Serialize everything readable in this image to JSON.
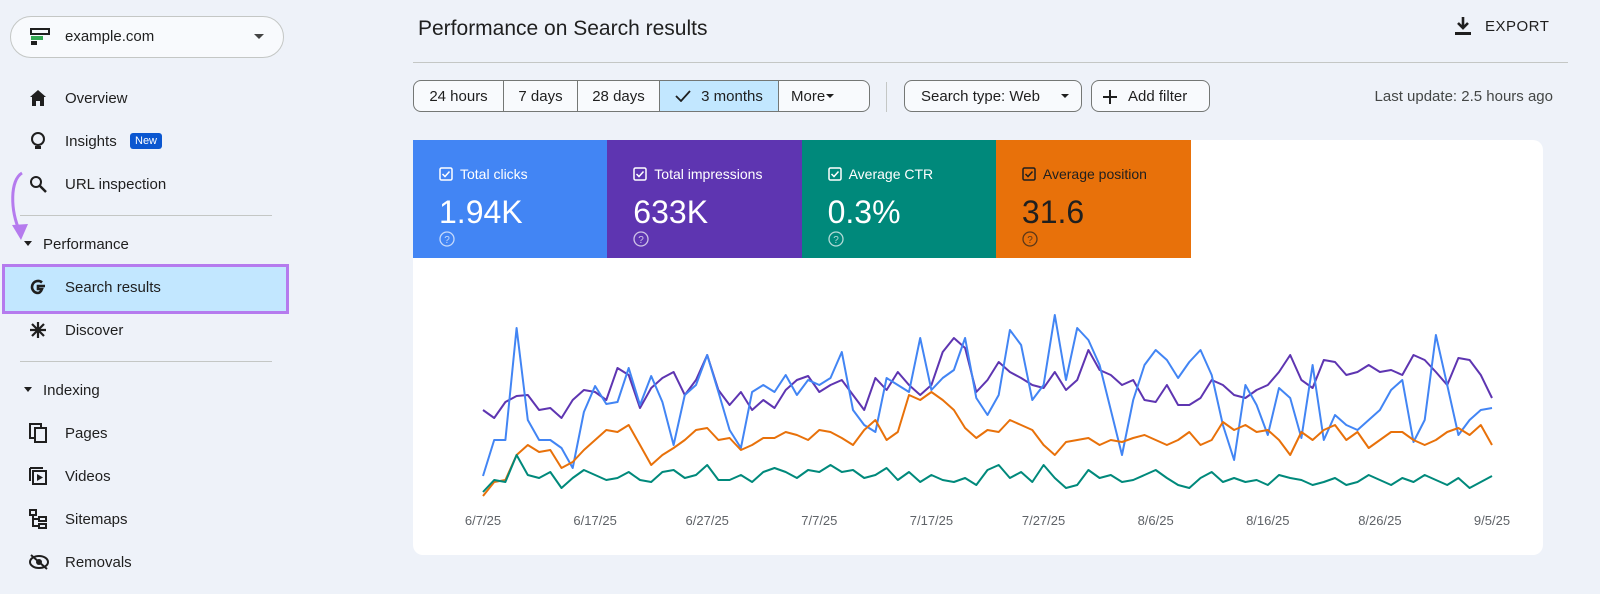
{
  "sidebar": {
    "property": "example.com",
    "nav": [
      "Overview",
      "Insights",
      "URL inspection"
    ],
    "badge": "New",
    "sections": [
      {
        "title": "Performance",
        "items": [
          "Search results",
          "Discover"
        ]
      },
      {
        "title": "Indexing",
        "items": [
          "Pages",
          "Videos",
          "Sitemaps",
          "Removals"
        ]
      }
    ]
  },
  "header": {
    "title": "Performance on Search results",
    "export": "EXPORT"
  },
  "filters": {
    "ranges": [
      "24 hours",
      "7 days",
      "28 days",
      "3 months",
      "More"
    ],
    "selected": 3,
    "search_type": "Search type: Web",
    "add_filter": "Add filter",
    "last_update": "Last update: 2.5 hours ago"
  },
  "chart_data": {
    "type": "line",
    "x": [
      0,
      1,
      2,
      3,
      4,
      5,
      6,
      7,
      8,
      9,
      10,
      11,
      12,
      13,
      14,
      15,
      16,
      17,
      18,
      19,
      20,
      21,
      22,
      23,
      24,
      25,
      26,
      27,
      28,
      29,
      30,
      31,
      32,
      33,
      34,
      35,
      36,
      37,
      38,
      39,
      40,
      41,
      42,
      43,
      44,
      45,
      46,
      47,
      48,
      49,
      50,
      51,
      52,
      53,
      54,
      55,
      56,
      57,
      58,
      59,
      60,
      61,
      62,
      63,
      64,
      65,
      66,
      67,
      68,
      69,
      70,
      71,
      72,
      73,
      74,
      75,
      76,
      77,
      78,
      79,
      80,
      81,
      82,
      83,
      84,
      85,
      86,
      87,
      88,
      89,
      90
    ],
    "xlim": [
      0,
      90
    ],
    "xticks": [
      {
        "value": 0,
        "label": "6/7/25"
      },
      {
        "value": 10,
        "label": "6/17/25"
      },
      {
        "value": 20,
        "label": "6/27/25"
      },
      {
        "value": 30,
        "label": "7/7/25"
      },
      {
        "value": 40,
        "label": "7/17/25"
      },
      {
        "value": 50,
        "label": "7/27/25"
      },
      {
        "value": 60,
        "label": "8/6/25"
      },
      {
        "value": 70,
        "label": "8/16/25"
      },
      {
        "value": 80,
        "label": "8/26/25"
      },
      {
        "value": 90,
        "label": "9/5/25"
      }
    ],
    "ylim": [
      0,
      220
    ],
    "series": [
      {
        "name": "Total impressions",
        "summary": "633K",
        "color": "#5e35b1",
        "values": [
          100,
          92,
          108,
          114,
          115,
          100,
          102,
          92,
          110,
          120,
          118,
          110,
          142,
          135,
          102,
          122,
          132,
          138,
          115,
          130,
          155,
          120,
          105,
          118,
          100,
          110,
          102,
          120,
          130,
          134,
          118,
          125,
          130,
          115,
          100,
          132,
          120,
          138,
          125,
          115,
          125,
          158,
          172,
          162,
          118,
          130,
          148,
          138,
          132,
          125,
          122,
          138,
          120,
          130,
          160,
          140,
          135,
          125,
          130,
          110,
          108,
          125,
          105,
          105,
          112,
          130,
          125,
          115,
          112,
          120,
          125,
          138,
          155,
          130,
          122,
          150,
          148,
          135,
          138,
          145,
          138,
          140,
          135,
          155,
          150,
          138,
          125,
          152,
          150,
          135,
          112
        ]
      },
      {
        "name": "Total clicks",
        "summary": "1.94K",
        "color": "#4285f4",
        "values": [
          34,
          70,
          70,
          182,
          90,
          70,
          70,
          62,
          42,
          98,
          124,
          106,
          108,
          142,
          105,
          134,
          108,
          65,
          115,
          125,
          155,
          118,
          80,
          62,
          118,
          125,
          118,
          135,
          115,
          130,
          125,
          132,
          158,
          100,
          85,
          78,
          132,
          125,
          118,
          172,
          120,
          132,
          140,
          172,
          112,
          95,
          115,
          180,
          165,
          110,
          125,
          195,
          130,
          182,
          170,
          145,
          100,
          55,
          110,
          145,
          160,
          150,
          132,
          148,
          160,
          135,
          85,
          50,
          125,
          105,
          75,
          122,
          112,
          72,
          145,
          70,
          95,
          85,
          80,
          90,
          100,
          120,
          130,
          68,
          90,
          175,
          125,
          75,
          90,
          100,
          102
        ]
      },
      {
        "name": "Average position",
        "summary": "31.6",
        "color": "#e8710a",
        "values": [
          14,
          28,
          30,
          55,
          65,
          58,
          60,
          42,
          48,
          60,
          70,
          80,
          78,
          85,
          65,
          45,
          55,
          62,
          70,
          80,
          82,
          70,
          72,
          60,
          65,
          72,
          72,
          78,
          75,
          70,
          80,
          78,
          72,
          65,
          80,
          90,
          70,
          78,
          115,
          110,
          118,
          110,
          100,
          82,
          72,
          80,
          78,
          90,
          85,
          80,
          65,
          55,
          68,
          70,
          72,
          65,
          70,
          68,
          72,
          75,
          70,
          65,
          70,
          78,
          65,
          70,
          88,
          80,
          85,
          78,
          80,
          70,
          55,
          78,
          70,
          80,
          85,
          70,
          78,
          62,
          70,
          78,
          78,
          70,
          65,
          70,
          78,
          82,
          75,
          85,
          65
        ]
      },
      {
        "name": "Average CTR",
        "summary": "0.3%",
        "color": "#00897b",
        "values": [
          18,
          30,
          28,
          55,
          35,
          32,
          38,
          22,
          32,
          40,
          35,
          30,
          32,
          38,
          30,
          28,
          38,
          40,
          32,
          35,
          45,
          30,
          30,
          35,
          28,
          38,
          42,
          38,
          32,
          40,
          38,
          45,
          38,
          40,
          32,
          35,
          42,
          30,
          38,
          28,
          35,
          30,
          28,
          32,
          25,
          40,
          45,
          32,
          38,
          28,
          45,
          32,
          22,
          25,
          40,
          32,
          35,
          28,
          30,
          35,
          40,
          32,
          25,
          22,
          32,
          38,
          28,
          32,
          28,
          30,
          25,
          35,
          32,
          30,
          25,
          28,
          32,
          25,
          28,
          35,
          30,
          25,
          32,
          28,
          35,
          30,
          25,
          32,
          22,
          28,
          34
        ]
      }
    ]
  }
}
